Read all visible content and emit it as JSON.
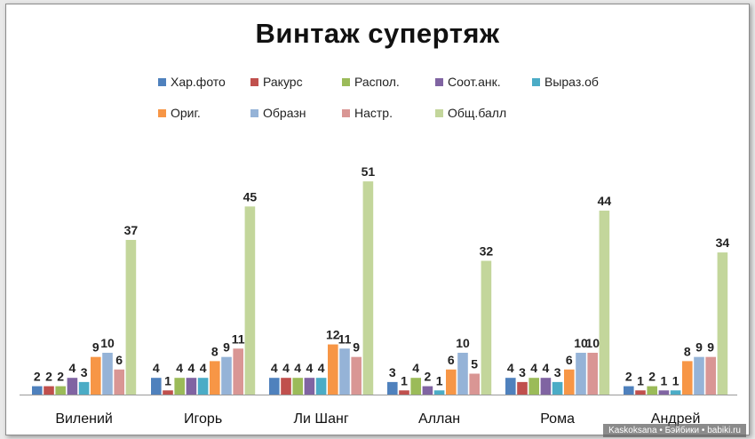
{
  "chart_data": {
    "type": "bar",
    "title": "Винтаж супертяж",
    "categories": [
      "Вилений",
      "Игорь",
      "Ли Шанг",
      "Аллан",
      "Рома",
      "Андрей"
    ],
    "ylim": [
      0,
      54
    ],
    "grid": false,
    "legend_position": "top",
    "series": [
      {
        "name": "Хар.фото",
        "color": "#4f81bd",
        "values": [
          2,
          4,
          4,
          3,
          4,
          2
        ]
      },
      {
        "name": "Ракурс",
        "color": "#c0504d",
        "values": [
          2,
          1,
          4,
          1,
          3,
          1
        ]
      },
      {
        "name": "Распол.",
        "color": "#9bbb59",
        "values": [
          2,
          4,
          4,
          4,
          4,
          2
        ]
      },
      {
        "name": "Соот.анк.",
        "color": "#8064a2",
        "values": [
          4,
          4,
          4,
          2,
          4,
          1
        ]
      },
      {
        "name": "Выраз.об",
        "color": "#4bacc6",
        "values": [
          3,
          4,
          4,
          1,
          3,
          1
        ]
      },
      {
        "name": "Ориг.",
        "color": "#f79646",
        "values": [
          9,
          8,
          12,
          6,
          6,
          8
        ]
      },
      {
        "name": "Образн",
        "color": "#95b3d7",
        "values": [
          10,
          9,
          11,
          10,
          10,
          9
        ]
      },
      {
        "name": "Настр.",
        "color": "#d99694",
        "values": [
          6,
          11,
          9,
          5,
          10,
          9
        ]
      },
      {
        "name": "Общ.балл",
        "color": "#c3d69b",
        "values": [
          37,
          45,
          51,
          32,
          44,
          34
        ]
      }
    ]
  },
  "watermark": "Kaskoksana • Бэйбики • babiki.ru"
}
